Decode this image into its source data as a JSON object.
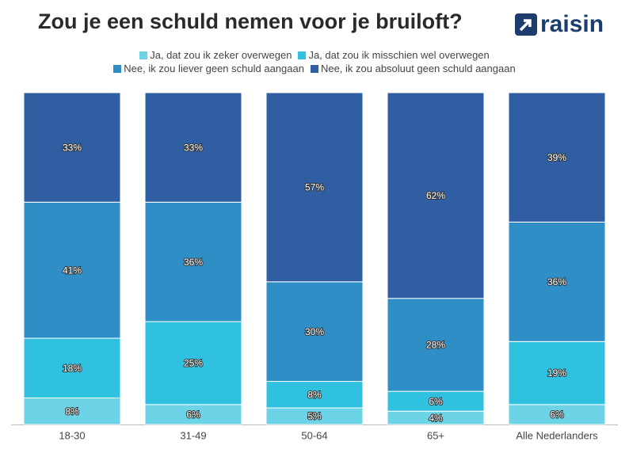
{
  "chart_data": {
    "type": "stacked_bar",
    "title": "Zou je een schuld nemen voor je bruiloft?",
    "logo": "raisin",
    "categories": [
      "18-30",
      "31-49",
      "50-64",
      "65+",
      "Alle Nederlanders"
    ],
    "ylim": [
      0,
      100
    ],
    "series": [
      {
        "name": "Ja, dat zou ik zeker overwegen",
        "color": "#6dd4e7",
        "values": [
          8,
          6,
          5,
          4,
          6
        ],
        "value_labels": [
          "8%",
          "6%",
          "5%",
          "4%",
          "6%"
        ]
      },
      {
        "name": "Ja, dat zou ik misschien wel overwegen",
        "color": "#31c1e0",
        "values": [
          18,
          25,
          8,
          6,
          19
        ],
        "value_labels": [
          "18%",
          "25%",
          "8%",
          "6%",
          "19%"
        ]
      },
      {
        "name": "Nee, ik zou liever geen schuld aangaan",
        "color": "#2f8ec6",
        "values": [
          41,
          36,
          30,
          28,
          36
        ],
        "value_labels": [
          "41%",
          "36%",
          "30%",
          "28%",
          "36%"
        ]
      },
      {
        "name": "Nee, ik zou absoluut geen schuld aangaan",
        "color": "#2f5fa2",
        "values": [
          33,
          33,
          57,
          62,
          39
        ],
        "value_labels": [
          "33%",
          "33%",
          "57%",
          "62%",
          "39%"
        ]
      }
    ]
  }
}
